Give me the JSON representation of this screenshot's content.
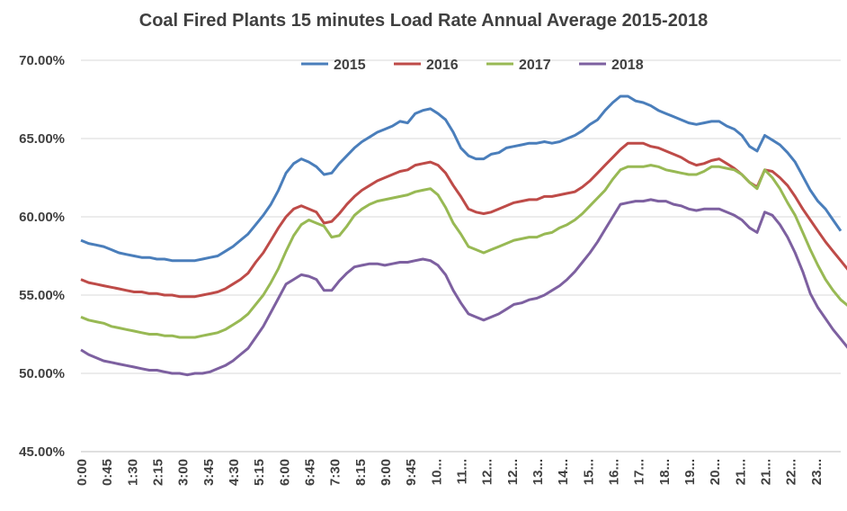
{
  "chart_data": {
    "type": "line",
    "title": "Coal Fired Plants 15 minutes Load Rate Annual Average 2015-2018",
    "xlabel": "",
    "ylabel": "",
    "ylim": [
      45,
      70
    ],
    "yticks": [
      "45.00%",
      "50.00%",
      "55.00%",
      "60.00%",
      "65.00%",
      "70.00%"
    ],
    "ytick_values": [
      45,
      50,
      55,
      60,
      65,
      70
    ],
    "xtick_labels": [
      "0:00",
      "0:45",
      "1:30",
      "2:15",
      "3:00",
      "3:45",
      "4:30",
      "5:15",
      "6:00",
      "6:45",
      "7:30",
      "8:15",
      "9:00",
      "9:45",
      "10...",
      "11...",
      "12...",
      "12...",
      "13...",
      "14...",
      "15...",
      "16...",
      "17...",
      "18...",
      "19...",
      "20...",
      "21...",
      "21...",
      "22...",
      "23..."
    ],
    "grid": "horizontal",
    "legend_position": "top-center",
    "colors": [
      "#4a7ebb",
      "#be4b48",
      "#98b954",
      "#7d60a0"
    ],
    "series": [
      {
        "name": "2015",
        "values": [
          58.5,
          58.3,
          58.2,
          58.1,
          57.9,
          57.7,
          57.6,
          57.5,
          57.4,
          57.4,
          57.3,
          57.3,
          57.2,
          57.2,
          57.2,
          57.2,
          57.3,
          57.4,
          57.5,
          57.8,
          58.1,
          58.5,
          58.9,
          59.5,
          60.1,
          60.8,
          61.7,
          62.8,
          63.4,
          63.7,
          63.5,
          63.2,
          62.7,
          62.8,
          63.4,
          63.9,
          64.4,
          64.8,
          65.1,
          65.4,
          65.6,
          65.8,
          66.1,
          66.0,
          66.6,
          66.8,
          66.9,
          66.6,
          66.2,
          65.4,
          64.4,
          63.9,
          63.7,
          63.7,
          64.0,
          64.1,
          64.4,
          64.5,
          64.6,
          64.7,
          64.7,
          64.8,
          64.7,
          64.8,
          65.0,
          65.2,
          65.5,
          65.9,
          66.2,
          66.8,
          67.3,
          67.7,
          67.7,
          67.4,
          67.3,
          67.1,
          66.8,
          66.6,
          66.4,
          66.2,
          66.0,
          65.9,
          66.0,
          66.1,
          66.1,
          65.8,
          65.6,
          65.2,
          64.5,
          64.2,
          65.2,
          64.9,
          64.6,
          64.1,
          63.5,
          62.6,
          61.7,
          61.0,
          60.5,
          59.8,
          59.1
        ]
      },
      {
        "name": "2016",
        "values": [
          56.0,
          55.8,
          55.7,
          55.6,
          55.5,
          55.4,
          55.3,
          55.2,
          55.2,
          55.1,
          55.1,
          55.0,
          55.0,
          54.9,
          54.9,
          54.9,
          55.0,
          55.1,
          55.2,
          55.4,
          55.7,
          56.0,
          56.4,
          57.1,
          57.7,
          58.5,
          59.3,
          60.0,
          60.5,
          60.7,
          60.5,
          60.3,
          59.6,
          59.7,
          60.2,
          60.8,
          61.3,
          61.7,
          62.0,
          62.3,
          62.5,
          62.7,
          62.9,
          63.0,
          63.3,
          63.4,
          63.5,
          63.3,
          62.8,
          62.0,
          61.3,
          60.5,
          60.3,
          60.2,
          60.3,
          60.5,
          60.7,
          60.9,
          61.0,
          61.1,
          61.1,
          61.3,
          61.3,
          61.4,
          61.5,
          61.6,
          61.9,
          62.3,
          62.8,
          63.3,
          63.8,
          64.3,
          64.7,
          64.7,
          64.7,
          64.5,
          64.4,
          64.2,
          64.0,
          63.8,
          63.5,
          63.3,
          63.4,
          63.6,
          63.7,
          63.4,
          63.1,
          62.7,
          62.2,
          61.9,
          63.0,
          62.9,
          62.5,
          62.0,
          61.3,
          60.5,
          59.8,
          59.1,
          58.4,
          57.8,
          57.2,
          56.6
        ]
      },
      {
        "name": "2017",
        "values": [
          53.6,
          53.4,
          53.3,
          53.2,
          53.0,
          52.9,
          52.8,
          52.7,
          52.6,
          52.5,
          52.5,
          52.4,
          52.4,
          52.3,
          52.3,
          52.3,
          52.4,
          52.5,
          52.6,
          52.8,
          53.1,
          53.4,
          53.8,
          54.4,
          55.0,
          55.8,
          56.7,
          57.8,
          58.8,
          59.5,
          59.8,
          59.6,
          59.4,
          58.7,
          58.8,
          59.4,
          60.1,
          60.5,
          60.8,
          61.0,
          61.1,
          61.2,
          61.3,
          61.4,
          61.6,
          61.7,
          61.8,
          61.4,
          60.6,
          59.6,
          58.9,
          58.1,
          57.9,
          57.7,
          57.9,
          58.1,
          58.3,
          58.5,
          58.6,
          58.7,
          58.7,
          58.9,
          59.0,
          59.3,
          59.5,
          59.8,
          60.2,
          60.7,
          61.2,
          61.7,
          62.4,
          63.0,
          63.2,
          63.2,
          63.2,
          63.3,
          63.2,
          63.0,
          62.9,
          62.8,
          62.7,
          62.7,
          62.9,
          63.2,
          63.2,
          63.1,
          63.0,
          62.7,
          62.2,
          61.8,
          63.0,
          62.5,
          61.8,
          60.9,
          60.1,
          59.0,
          57.9,
          56.9,
          56.0,
          55.3,
          54.7,
          54.3
        ]
      },
      {
        "name": "2018",
        "values": [
          51.5,
          51.2,
          51.0,
          50.8,
          50.7,
          50.6,
          50.5,
          50.4,
          50.3,
          50.2,
          50.2,
          50.1,
          50.0,
          50.0,
          49.9,
          50.0,
          50.0,
          50.1,
          50.3,
          50.5,
          50.8,
          51.2,
          51.6,
          52.3,
          53.0,
          53.9,
          54.8,
          55.7,
          56.0,
          56.3,
          56.2,
          56.0,
          55.3,
          55.3,
          55.9,
          56.4,
          56.8,
          56.9,
          57.0,
          57.0,
          56.9,
          57.0,
          57.1,
          57.1,
          57.2,
          57.3,
          57.2,
          56.9,
          56.3,
          55.3,
          54.5,
          53.8,
          53.6,
          53.4,
          53.6,
          53.8,
          54.1,
          54.4,
          54.5,
          54.7,
          54.8,
          55.0,
          55.3,
          55.6,
          56.0,
          56.5,
          57.1,
          57.7,
          58.4,
          59.2,
          60.0,
          60.8,
          60.9,
          61.0,
          61.0,
          61.1,
          61.0,
          61.0,
          60.8,
          60.7,
          60.5,
          60.4,
          60.5,
          60.5,
          60.5,
          60.3,
          60.1,
          59.8,
          59.3,
          59.0,
          60.3,
          60.1,
          59.5,
          58.7,
          57.7,
          56.5,
          55.1,
          54.2,
          53.5,
          52.8,
          52.2,
          51.6
        ]
      }
    ]
  }
}
